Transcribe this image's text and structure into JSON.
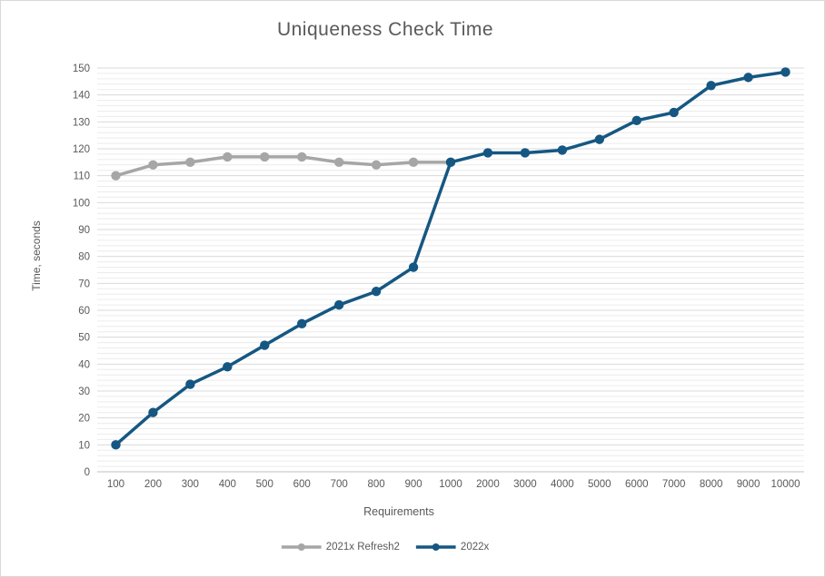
{
  "chart_data": {
    "type": "line",
    "title": "Uniqueness Check Time",
    "xlabel": "Requirements",
    "ylabel": "Time, seconds",
    "categories": [
      "100",
      "200",
      "300",
      "400",
      "500",
      "600",
      "700",
      "800",
      "900",
      "1000",
      "2000",
      "3000",
      "4000",
      "5000",
      "6000",
      "7000",
      "8000",
      "9000",
      "10000"
    ],
    "series": [
      {
        "name": "2021x Refresh2",
        "color": "#A6A6A6",
        "values": [
          110,
          114,
          115,
          117,
          117,
          117,
          115,
          114,
          115,
          115,
          null,
          null,
          null,
          null,
          null,
          null,
          null,
          null,
          null
        ]
      },
      {
        "name": "2022x",
        "color": "#155782",
        "values": [
          10,
          22,
          32.5,
          39,
          47,
          55,
          62,
          67,
          76,
          115,
          118.5,
          118.5,
          119.5,
          123.5,
          130.5,
          133.5,
          143.5,
          146.5,
          148.5
        ]
      }
    ],
    "ylim": [
      0,
      150
    ],
    "y_major_step": 10,
    "y_minor_step": 2,
    "grid": "horizontal major+minor",
    "legend_position": "bottom"
  },
  "colors": {
    "text": "#595959",
    "grid_minor": "#ececec",
    "grid_major": "#d9d9d9",
    "axis_line": "#bfbfbf",
    "series_2021x": "#A6A6A6",
    "series_2022x": "#155782"
  }
}
